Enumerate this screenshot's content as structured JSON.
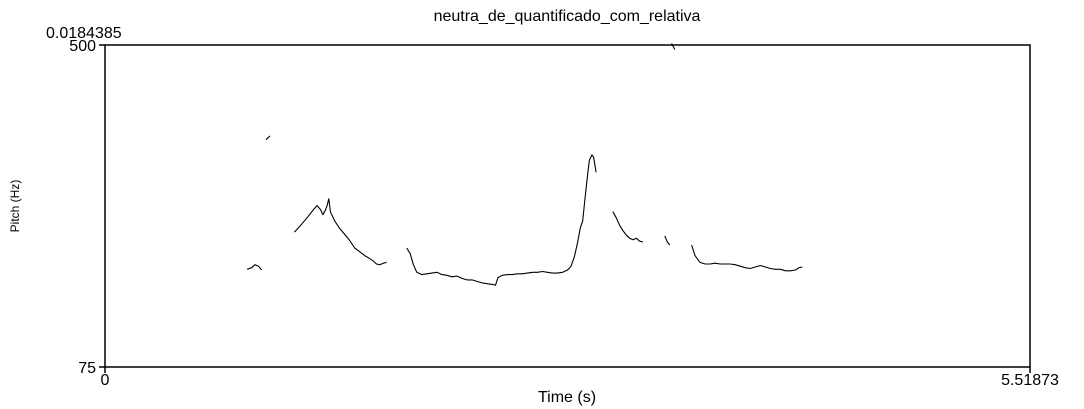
{
  "chart_data": {
    "type": "line",
    "title": "neutra_de_quantificado_com_relativa",
    "xlabel": "Time (s)",
    "ylabel": "Pitch (Hz)",
    "top_left_label": "0.0184385",
    "xlim": [
      0,
      5.51873
    ],
    "ylim": [
      75,
      500
    ],
    "x_tick_labels": [
      "0",
      "5.51873"
    ],
    "y_tick_labels": [
      "500",
      "75"
    ],
    "grid": false,
    "line_color": "#000000",
    "segments": [
      [
        [
          0.848,
          204
        ],
        [
          0.875,
          206
        ],
        [
          0.895,
          210
        ],
        [
          0.915,
          208
        ],
        [
          0.935,
          203
        ]
      ],
      [
        [
          0.96,
          375
        ],
        [
          0.975,
          378
        ],
        [
          0.985,
          380
        ]
      ],
      [
        [
          1.13,
          253
        ],
        [
          1.16,
          260
        ],
        [
          1.19,
          268
        ],
        [
          1.22,
          276
        ],
        [
          1.245,
          283
        ],
        [
          1.265,
          288
        ],
        [
          1.285,
          283
        ],
        [
          1.3,
          276
        ],
        [
          1.315,
          282
        ],
        [
          1.325,
          288
        ],
        [
          1.335,
          297
        ],
        [
          1.345,
          280
        ],
        [
          1.37,
          268
        ],
        [
          1.4,
          258
        ],
        [
          1.43,
          250
        ],
        [
          1.46,
          242
        ],
        [
          1.49,
          232
        ],
        [
          1.52,
          227
        ],
        [
          1.55,
          222
        ],
        [
          1.58,
          218
        ],
        [
          1.6,
          215
        ],
        [
          1.62,
          211
        ],
        [
          1.64,
          210
        ],
        [
          1.66,
          212
        ],
        [
          1.68,
          213
        ]
      ],
      [
        [
          1.8,
          232
        ],
        [
          1.82,
          225
        ],
        [
          1.84,
          210
        ],
        [
          1.86,
          200
        ],
        [
          1.89,
          197
        ],
        [
          1.92,
          198
        ],
        [
          1.95,
          199
        ],
        [
          1.98,
          200
        ],
        [
          2.01,
          197
        ],
        [
          2.04,
          196
        ],
        [
          2.07,
          194
        ],
        [
          2.1,
          195
        ],
        [
          2.13,
          192
        ],
        [
          2.16,
          190
        ],
        [
          2.19,
          190
        ],
        [
          2.22,
          188
        ],
        [
          2.25,
          186
        ],
        [
          2.28,
          185
        ],
        [
          2.31,
          184
        ],
        [
          2.33,
          183
        ],
        [
          2.345,
          193
        ],
        [
          2.37,
          196
        ],
        [
          2.4,
          197
        ],
        [
          2.43,
          197
        ],
        [
          2.46,
          198
        ],
        [
          2.49,
          198
        ],
        [
          2.52,
          199
        ],
        [
          2.55,
          200
        ],
        [
          2.58,
          200
        ],
        [
          2.61,
          201
        ],
        [
          2.64,
          200
        ],
        [
          2.67,
          199
        ],
        [
          2.7,
          199
        ],
        [
          2.73,
          200
        ],
        [
          2.76,
          203
        ],
        [
          2.78,
          208
        ],
        [
          2.8,
          220
        ],
        [
          2.82,
          240
        ],
        [
          2.835,
          258
        ],
        [
          2.85,
          268
        ],
        [
          2.865,
          300
        ],
        [
          2.88,
          330
        ],
        [
          2.89,
          348
        ],
        [
          2.905,
          355
        ],
        [
          2.915,
          352
        ],
        [
          2.93,
          332
        ]
      ],
      [
        [
          3.03,
          280
        ],
        [
          3.05,
          272
        ],
        [
          3.07,
          262
        ],
        [
          3.09,
          255
        ],
        [
          3.11,
          249
        ],
        [
          3.13,
          245
        ],
        [
          3.15,
          243
        ],
        [
          3.17,
          245
        ],
        [
          3.19,
          241
        ],
        [
          3.21,
          240
        ]
      ],
      [
        [
          3.38,
          502
        ],
        [
          3.4,
          494
        ]
      ],
      [
        [
          3.34,
          248
        ],
        [
          3.355,
          240
        ],
        [
          3.37,
          236
        ]
      ],
      [
        [
          3.5,
          236
        ],
        [
          3.52,
          222
        ],
        [
          3.55,
          213
        ],
        [
          3.58,
          211
        ],
        [
          3.61,
          211
        ],
        [
          3.64,
          212
        ],
        [
          3.67,
          211
        ],
        [
          3.7,
          211
        ],
        [
          3.73,
          211
        ],
        [
          3.76,
          210
        ],
        [
          3.79,
          208
        ],
        [
          3.82,
          206
        ],
        [
          3.85,
          205
        ],
        [
          3.88,
          207
        ],
        [
          3.91,
          209
        ],
        [
          3.94,
          207
        ],
        [
          3.97,
          205
        ],
        [
          4.0,
          204
        ],
        [
          4.03,
          204
        ],
        [
          4.06,
          202
        ],
        [
          4.09,
          202
        ],
        [
          4.12,
          203
        ],
        [
          4.14,
          206
        ],
        [
          4.16,
          207
        ]
      ]
    ]
  }
}
